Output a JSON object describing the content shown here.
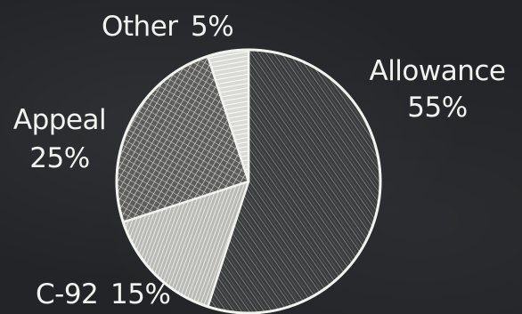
{
  "chart_data": {
    "type": "pie",
    "slices": [
      {
        "label": "Allowance",
        "value": 55,
        "value_text": "55%"
      },
      {
        "label": "C-92",
        "value": 15,
        "value_text": "15%"
      },
      {
        "label": "Appeal",
        "value": 25,
        "value_text": "25%"
      },
      {
        "label": "Other",
        "value": 5,
        "value_text": "5%"
      }
    ],
    "start_angle_deg": 0,
    "direction": "clockwise",
    "style": "chalkboard",
    "colors": {
      "background": "#222427",
      "chalk": "#f2f2ee",
      "slice_fills": [
        "#3a3b3d",
        "#cfcfcb",
        "#9e9f9d",
        "#e4e4e0"
      ]
    }
  }
}
